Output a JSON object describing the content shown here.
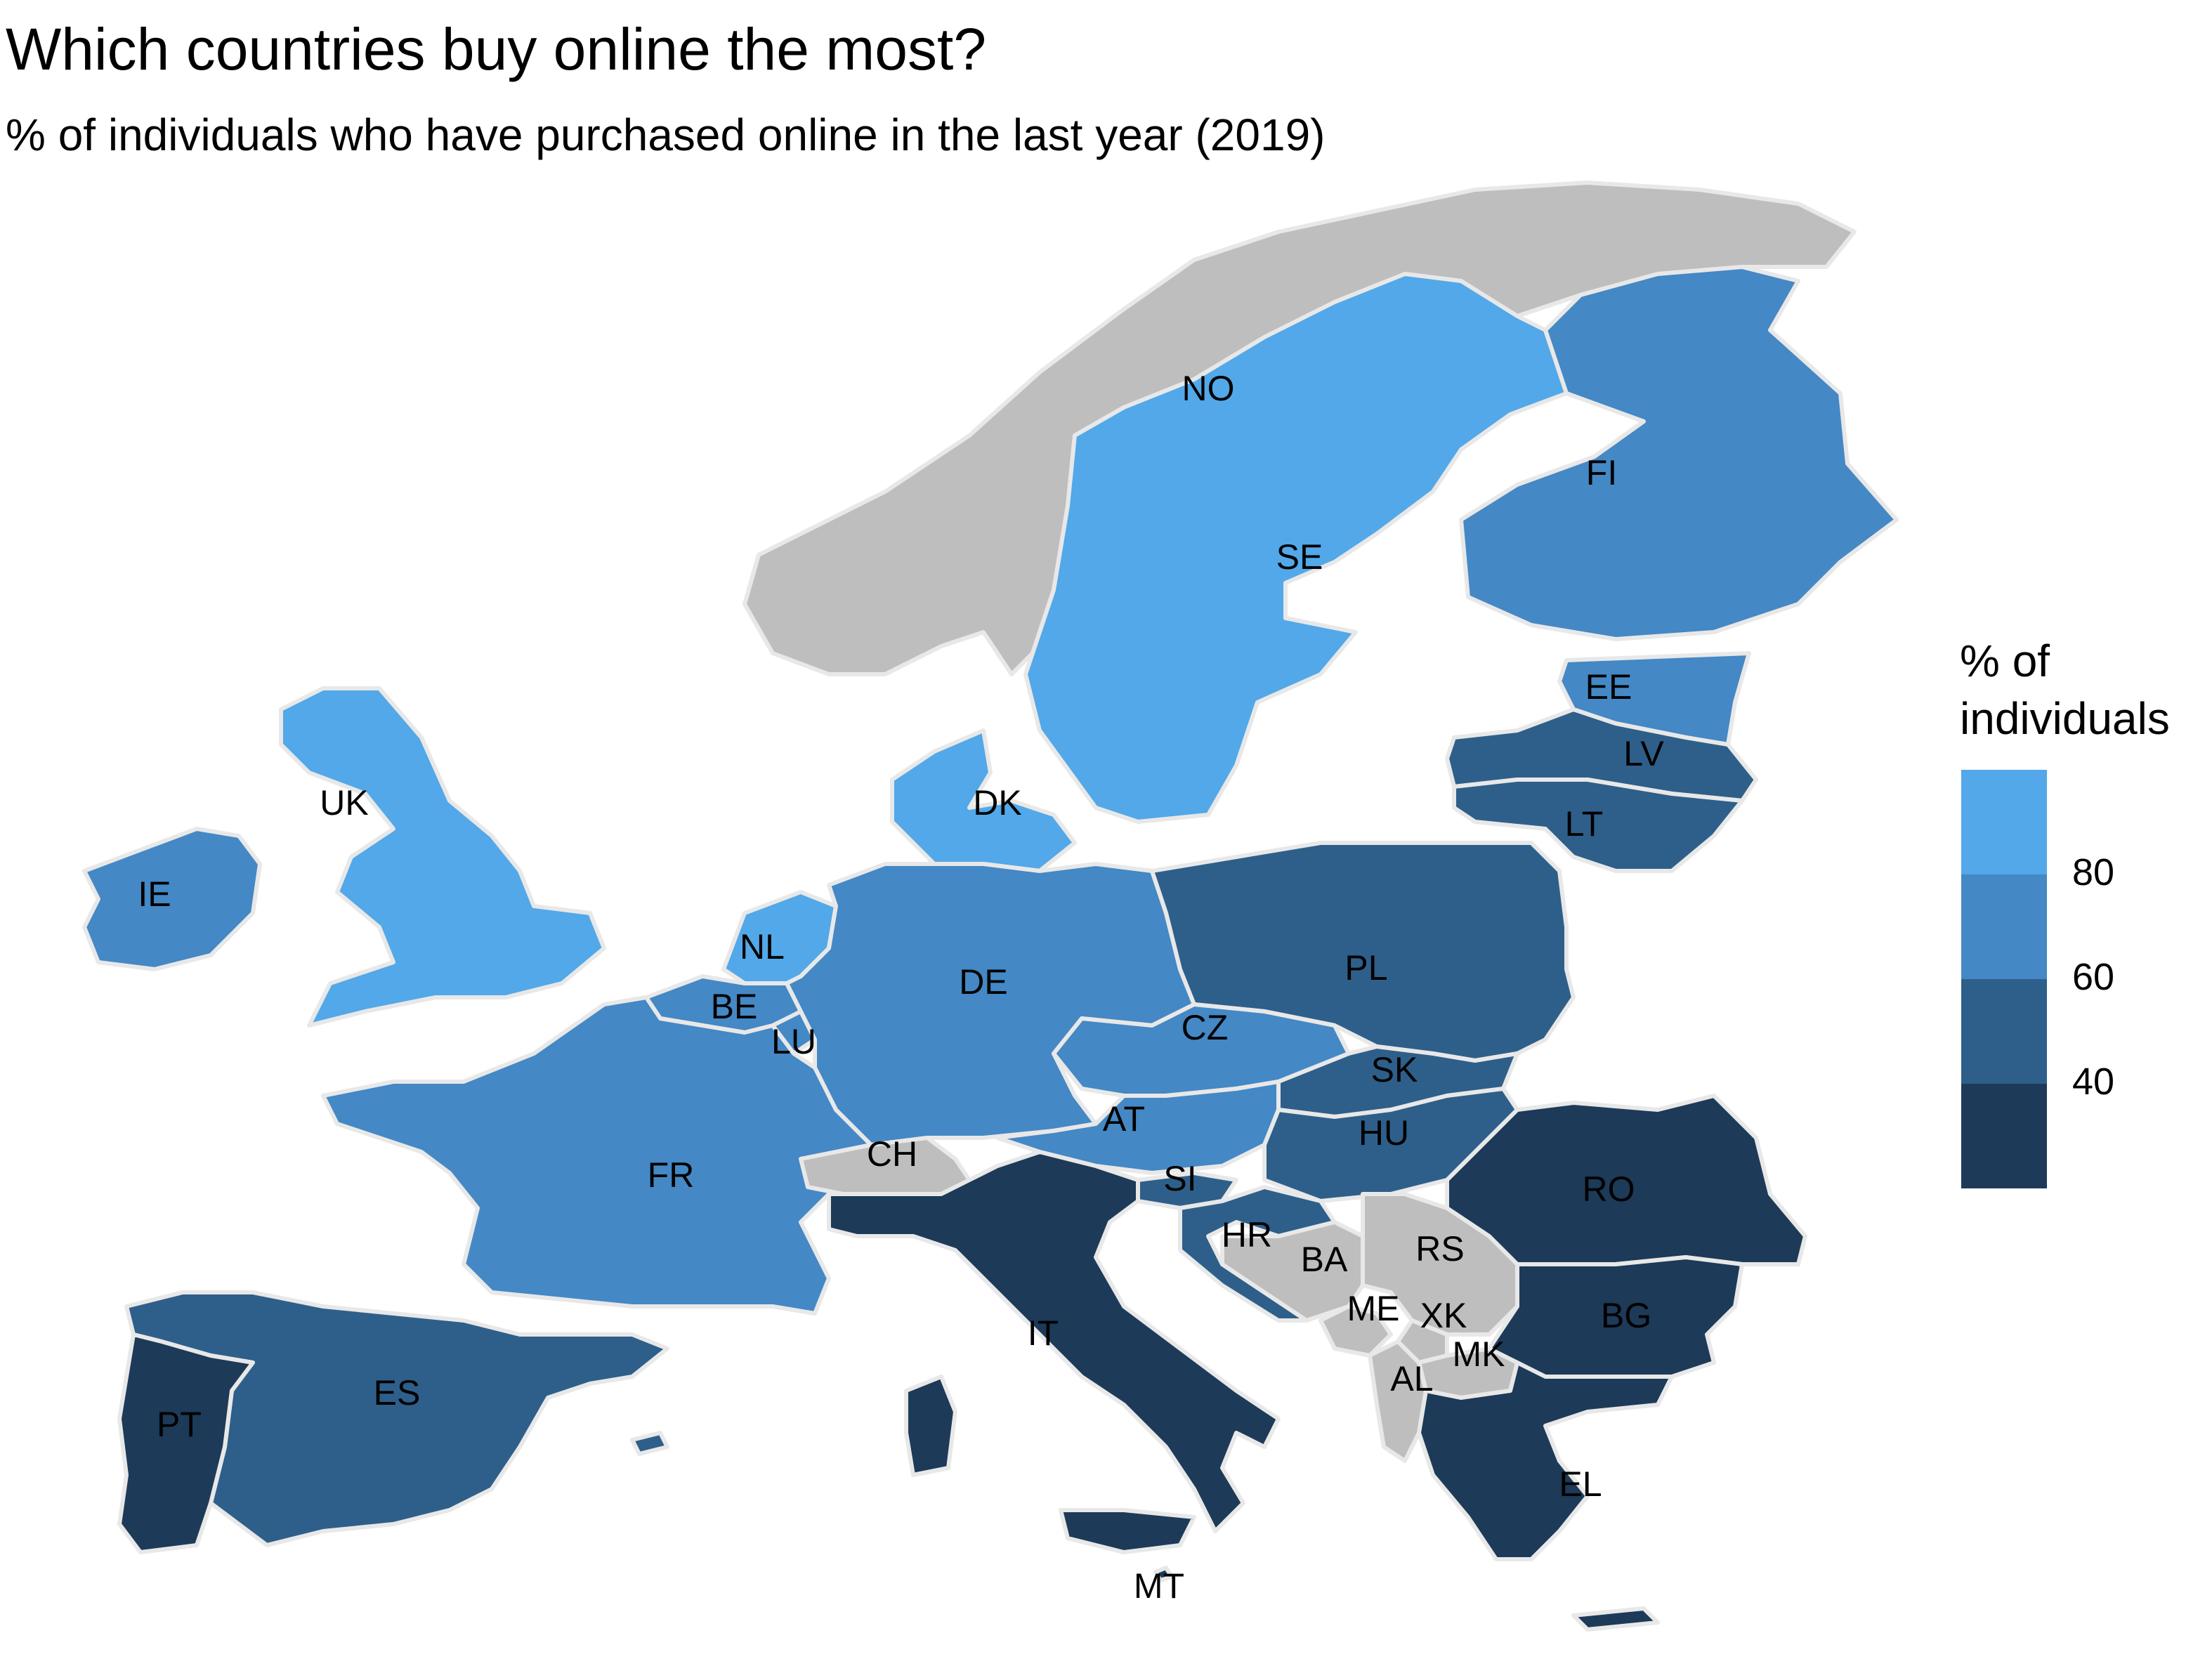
{
  "title": "Which countries buy online the most?",
  "subtitle": "% of individuals who have purchased online in the last year (2019)",
  "legend": {
    "title_line1": "% of",
    "title_line2": "individuals",
    "bins": [
      {
        "from": 80,
        "to": 100,
        "color": "#52a8e8"
      },
      {
        "from": 60,
        "to": 80,
        "color": "#4488c5"
      },
      {
        "from": 40,
        "to": 60,
        "color": "#2e5f8a"
      },
      {
        "from": 20,
        "to": 40,
        "color": "#1d3a58"
      }
    ],
    "ticks": [
      "80",
      "60",
      "40"
    ]
  },
  "colors": {
    "no_data": "#bebebe",
    "border": "#e8e8e8",
    "background": "#ffffff"
  },
  "countries": [
    {
      "code": "NO",
      "bin": "no-data"
    },
    {
      "code": "SE",
      "bin": "80-100"
    },
    {
      "code": "FI",
      "bin": "60-80"
    },
    {
      "code": "EE",
      "bin": "60-80"
    },
    {
      "code": "LV",
      "bin": "40-60"
    },
    {
      "code": "LT",
      "bin": "40-60"
    },
    {
      "code": "DK",
      "bin": "80-100"
    },
    {
      "code": "UK",
      "bin": "80-100"
    },
    {
      "code": "IE",
      "bin": "60-80"
    },
    {
      "code": "NL",
      "bin": "80-100"
    },
    {
      "code": "BE",
      "bin": "60-80"
    },
    {
      "code": "LU",
      "bin": "60-80"
    },
    {
      "code": "DE",
      "bin": "60-80"
    },
    {
      "code": "PL",
      "bin": "40-60"
    },
    {
      "code": "CZ",
      "bin": "60-80"
    },
    {
      "code": "SK",
      "bin": "40-60"
    },
    {
      "code": "AT",
      "bin": "60-80"
    },
    {
      "code": "HU",
      "bin": "40-60"
    },
    {
      "code": "FR",
      "bin": "60-80"
    },
    {
      "code": "CH",
      "bin": "no-data"
    },
    {
      "code": "SI",
      "bin": "40-60"
    },
    {
      "code": "HR",
      "bin": "40-60"
    },
    {
      "code": "BA",
      "bin": "no-data"
    },
    {
      "code": "RS",
      "bin": "no-data"
    },
    {
      "code": "ME",
      "bin": "no-data"
    },
    {
      "code": "XK",
      "bin": "no-data"
    },
    {
      "code": "MK",
      "bin": "no-data"
    },
    {
      "code": "AL",
      "bin": "no-data"
    },
    {
      "code": "RO",
      "bin": "20-40"
    },
    {
      "code": "BG",
      "bin": "20-40"
    },
    {
      "code": "EL",
      "bin": "20-40"
    },
    {
      "code": "IT",
      "bin": "20-40"
    },
    {
      "code": "ES",
      "bin": "40-60"
    },
    {
      "code": "PT",
      "bin": "20-40"
    },
    {
      "code": "MT",
      "bin": "20-40"
    }
  ]
}
